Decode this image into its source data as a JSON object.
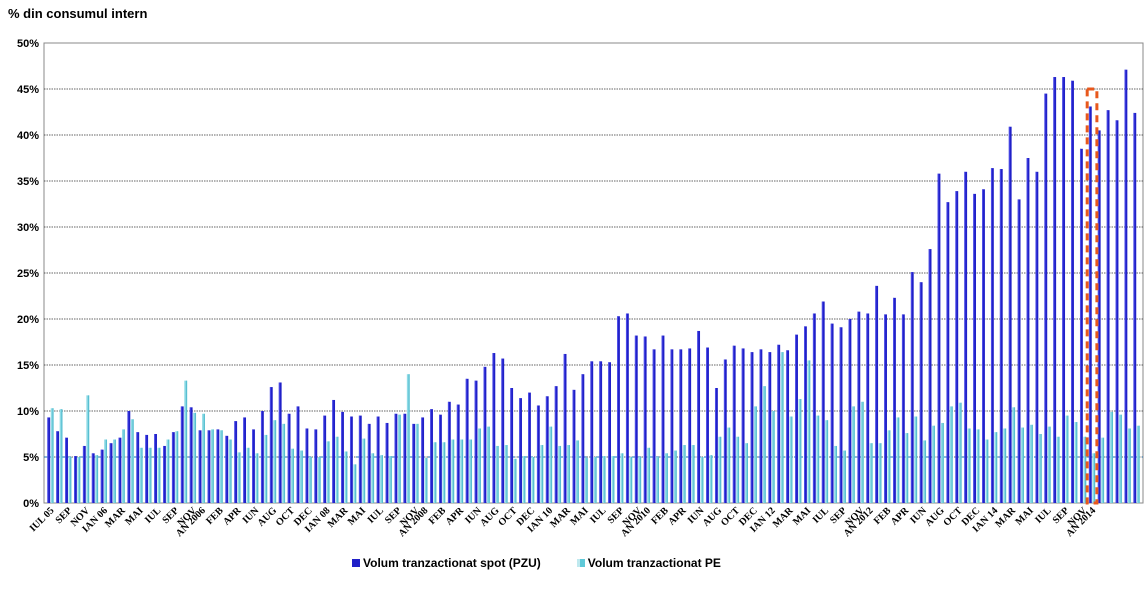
{
  "chart_data": {
    "type": "bar",
    "ylabel": "% din consumul intern",
    "ylim": [
      0,
      50
    ],
    "yticks": [
      "0%",
      "5%",
      "10%",
      "15%",
      "20%",
      "25%",
      "30%",
      "35%",
      "40%",
      "45%",
      "50%"
    ],
    "grid": true,
    "legend_position": "bottom",
    "colors": {
      "spot": "#2020c8",
      "pe": "#8fdbe6",
      "highlight": "#e8581c"
    },
    "series": [
      {
        "name": "Volum tranzactionat spot (PZU)",
        "values": [
          9.3,
          7.8,
          7.1,
          5.1,
          6.2,
          5.4,
          5.8,
          6.5,
          7.1,
          10.0,
          7.7,
          7.4,
          7.5,
          6.2,
          7.7,
          10.5,
          10.4,
          7.9,
          7.9,
          8.0,
          7.3,
          8.9,
          9.3,
          8.0,
          10.0,
          12.6,
          13.1,
          9.7,
          10.5,
          8.1,
          8.0,
          9.5,
          11.2,
          9.9,
          9.4,
          9.5,
          8.6,
          9.4,
          8.7,
          9.7,
          9.7,
          8.6,
          9.3,
          10.2,
          9.6,
          11.0,
          10.7,
          13.5,
          13.3,
          14.8,
          16.3,
          15.7,
          12.5,
          11.4,
          12.0,
          10.6,
          11.6,
          12.7,
          16.2,
          12.3,
          14.0,
          15.4,
          15.4,
          15.3,
          20.3,
          20.6,
          18.2,
          18.1,
          16.7,
          18.2,
          16.7,
          16.7,
          16.8,
          18.7,
          16.9,
          12.5,
          15.6,
          17.1,
          16.8,
          16.4,
          16.7,
          16.4,
          17.2,
          16.6,
          18.3,
          19.2,
          20.6,
          21.9,
          19.5,
          19.1,
          20.0,
          20.8,
          20.6,
          23.6,
          20.5,
          22.3,
          20.5,
          25.1,
          24.0,
          27.6,
          35.8,
          32.7,
          33.9,
          36.0,
          33.6,
          34.1,
          36.4,
          36.3,
          40.9,
          33.0,
          37.5,
          36.0,
          44.5,
          46.3,
          46.3,
          45.9,
          38.5,
          43.1,
          40.5,
          42.7,
          41.6,
          47.1,
          42.4
        ]
      },
      {
        "name": "Volum tranzactionat PE",
        "values": [
          10.3,
          10.2,
          5.0,
          5.0,
          11.7,
          5.2,
          6.9,
          6.9,
          8.0,
          9.1,
          6.0,
          6.0,
          6.0,
          6.9,
          7.8,
          13.3,
          9.8,
          9.7,
          8.0,
          7.9,
          6.9,
          5.5,
          6.0,
          5.4,
          7.4,
          9.0,
          8.6,
          5.9,
          5.7,
          5.0,
          5.0,
          6.7,
          7.2,
          5.6,
          4.2,
          7.0,
          5.4,
          5.2,
          5.1,
          9.6,
          14.0,
          8.6,
          4.9,
          6.6,
          6.6,
          6.9,
          6.9,
          6.9,
          8.1,
          8.3,
          6.2,
          6.3,
          4.8,
          5.1,
          5.0,
          6.3,
          8.3,
          6.2,
          6.3,
          6.8,
          4.9,
          5.0,
          5.1,
          5.1,
          5.4,
          5.0,
          5.0,
          6.0,
          5.0,
          5.4,
          5.7,
          6.3,
          6.3,
          5.0,
          5.2,
          7.2,
          8.2,
          7.2,
          6.5,
          10.5,
          12.7,
          10.0,
          16.4,
          9.4,
          11.3,
          15.5,
          9.5,
          9.0,
          6.2,
          5.7,
          10.5,
          11.0,
          6.5,
          6.5,
          7.9,
          9.3,
          7.6,
          9.4,
          6.8,
          8.4,
          8.7,
          10.5,
          10.9,
          8.1,
          8.0,
          6.9,
          7.7,
          8.1,
          10.4,
          8.2,
          8.5,
          7.5,
          8.3,
          7.2,
          9.5,
          8.8,
          7.2,
          5.4,
          7.1,
          9.9,
          9.6,
          8.1,
          8.4
        ]
      }
    ],
    "xtick_labels": [
      "IUL 05",
      "SEP",
      "NOV",
      "IAN 06",
      "MAR",
      "MAI",
      "IUL",
      "SEP",
      "NOV",
      "AN 2006",
      "FEB",
      "APR",
      "IUN",
      "AUG",
      "OCT",
      "DEC",
      "IAN 08",
      "MAR",
      "MAI",
      "IUL",
      "SEP",
      "NOV",
      "AN 2008",
      "FEB",
      "APR",
      "IUN",
      "AUG",
      "OCT",
      "DEC",
      "IAN 10",
      "MAR",
      "MAI",
      "IUL",
      "SEP",
      "NOV",
      "AN 2010",
      "FEB",
      "APR",
      "IUN",
      "AUG",
      "OCT",
      "DEC",
      "IAN 12",
      "MAR",
      "MAI",
      "IUL",
      "SEP",
      "NOV",
      "AN 2012",
      "FEB",
      "APR",
      "IUN",
      "AUG",
      "OCT",
      "DEC",
      "IAN 14",
      "MAR",
      "MAI",
      "IUL",
      "SEP",
      "NOV",
      "AN 2014"
    ],
    "xtick_indices": [
      0,
      2,
      4,
      6,
      8,
      10,
      12,
      14,
      16,
      17,
      19,
      21,
      23,
      25,
      27,
      29,
      31,
      33,
      35,
      37,
      39,
      41,
      42,
      44,
      46,
      48,
      50,
      52,
      54,
      56,
      58,
      60,
      62,
      64,
      66,
      67,
      69,
      71,
      73,
      75,
      77,
      79,
      81,
      83,
      85,
      87,
      89,
      91,
      92,
      94,
      96,
      98,
      100,
      102,
      104,
      106,
      108,
      110,
      112,
      114,
      116,
      117
    ],
    "highlight_index": 117
  }
}
